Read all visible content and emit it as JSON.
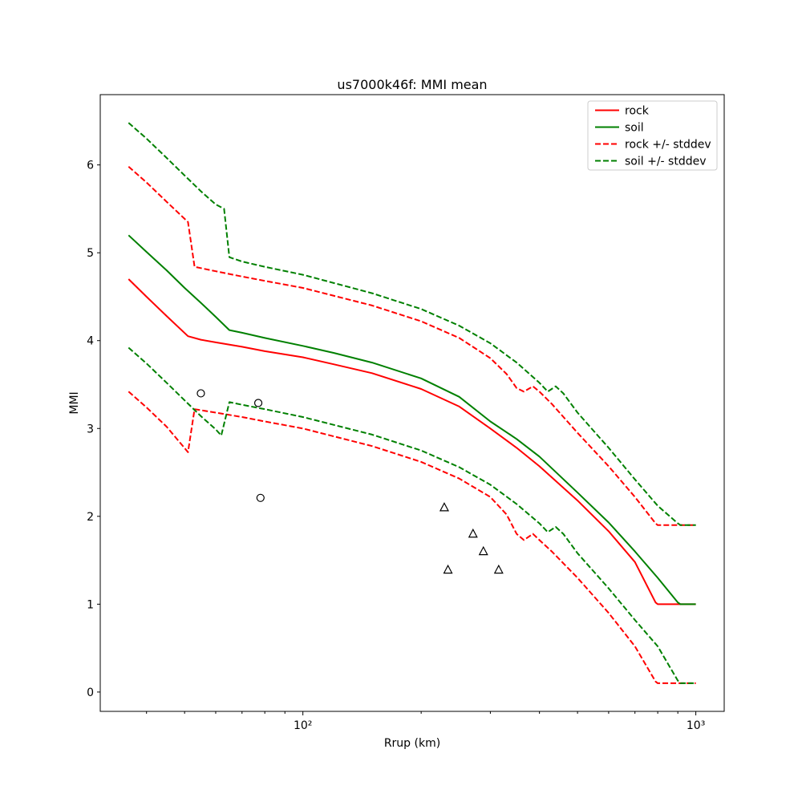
{
  "chart_data": {
    "type": "line",
    "title": "us7000k46f: MMI mean",
    "xlabel": "Rrup (km)",
    "ylabel": "MMI",
    "x_scale": "log",
    "xlim": [
      30.5,
      1181
    ],
    "ylim": [
      -0.22,
      6.8
    ],
    "yticks": [
      0,
      1,
      2,
      3,
      4,
      5,
      6
    ],
    "xticks_major": [
      {
        "value": 100,
        "label": "10²"
      },
      {
        "value": 1000,
        "label": "10³"
      }
    ],
    "xticks_minor": [
      40,
      50,
      60,
      70,
      80,
      90,
      200,
      300,
      400,
      500,
      600,
      700,
      800,
      900
    ],
    "colors": {
      "rock": "#ff0000",
      "soil": "#008000"
    },
    "series": [
      {
        "name": "rock",
        "color": "#ff0000",
        "style": "solid",
        "points": [
          [
            36,
            4.7
          ],
          [
            40,
            4.5
          ],
          [
            45,
            4.28
          ],
          [
            51,
            4.05
          ],
          [
            55,
            4.01
          ],
          [
            60,
            3.98
          ],
          [
            70,
            3.93
          ],
          [
            80,
            3.88
          ],
          [
            100,
            3.81
          ],
          [
            120,
            3.73
          ],
          [
            150,
            3.63
          ],
          [
            200,
            3.45
          ],
          [
            250,
            3.25
          ],
          [
            300,
            3.0
          ],
          [
            350,
            2.78
          ],
          [
            400,
            2.57
          ],
          [
            500,
            2.18
          ],
          [
            600,
            1.83
          ],
          [
            700,
            1.48
          ],
          [
            790,
            1.02
          ],
          [
            800,
            1.0
          ],
          [
            1000,
            1.0
          ]
        ]
      },
      {
        "name": "soil",
        "color": "#008000",
        "style": "solid",
        "points": [
          [
            36,
            5.2
          ],
          [
            40,
            5.01
          ],
          [
            45,
            4.8
          ],
          [
            50,
            4.6
          ],
          [
            55,
            4.43
          ],
          [
            60,
            4.27
          ],
          [
            65,
            4.12
          ],
          [
            70,
            4.09
          ],
          [
            80,
            4.03
          ],
          [
            100,
            3.94
          ],
          [
            120,
            3.86
          ],
          [
            150,
            3.75
          ],
          [
            200,
            3.57
          ],
          [
            250,
            3.36
          ],
          [
            300,
            3.08
          ],
          [
            350,
            2.88
          ],
          [
            400,
            2.68
          ],
          [
            500,
            2.27
          ],
          [
            600,
            1.93
          ],
          [
            700,
            1.6
          ],
          [
            800,
            1.3
          ],
          [
            900,
            1.02
          ],
          [
            914,
            1.0
          ],
          [
            1000,
            1.0
          ]
        ]
      },
      {
        "name": "rock-plus-stddev",
        "color": "#ff0000",
        "style": "dashed",
        "points": [
          [
            36,
            5.98
          ],
          [
            40,
            5.8
          ],
          [
            45,
            5.58
          ],
          [
            51,
            5.35
          ],
          [
            53,
            4.84
          ],
          [
            60,
            4.79
          ],
          [
            70,
            4.73
          ],
          [
            80,
            4.68
          ],
          [
            100,
            4.6
          ],
          [
            150,
            4.4
          ],
          [
            200,
            4.22
          ],
          [
            250,
            4.03
          ],
          [
            300,
            3.8
          ],
          [
            330,
            3.62
          ],
          [
            350,
            3.46
          ],
          [
            365,
            3.42
          ],
          [
            385,
            3.48
          ],
          [
            400,
            3.42
          ],
          [
            430,
            3.28
          ],
          [
            500,
            2.95
          ],
          [
            600,
            2.57
          ],
          [
            700,
            2.22
          ],
          [
            790,
            1.92
          ],
          [
            800,
            1.9
          ],
          [
            1000,
            1.9
          ]
        ]
      },
      {
        "name": "rock-minus-stddev",
        "color": "#ff0000",
        "style": "dashed",
        "points": [
          [
            36,
            3.42
          ],
          [
            40,
            3.24
          ],
          [
            45,
            3.02
          ],
          [
            51,
            2.73
          ],
          [
            53,
            3.22
          ],
          [
            60,
            3.18
          ],
          [
            70,
            3.13
          ],
          [
            80,
            3.08
          ],
          [
            100,
            3.0
          ],
          [
            150,
            2.8
          ],
          [
            200,
            2.62
          ],
          [
            250,
            2.43
          ],
          [
            300,
            2.22
          ],
          [
            330,
            2.02
          ],
          [
            350,
            1.8
          ],
          [
            365,
            1.73
          ],
          [
            385,
            1.8
          ],
          [
            400,
            1.73
          ],
          [
            430,
            1.6
          ],
          [
            500,
            1.3
          ],
          [
            600,
            0.9
          ],
          [
            700,
            0.52
          ],
          [
            790,
            0.12
          ],
          [
            800,
            0.1
          ],
          [
            1000,
            0.1
          ]
        ]
      },
      {
        "name": "soil-plus-stddev",
        "color": "#008000",
        "style": "dashed",
        "points": [
          [
            36,
            6.48
          ],
          [
            40,
            6.3
          ],
          [
            45,
            6.08
          ],
          [
            50,
            5.88
          ],
          [
            55,
            5.7
          ],
          [
            60,
            5.55
          ],
          [
            63,
            5.5
          ],
          [
            65,
            4.95
          ],
          [
            70,
            4.9
          ],
          [
            80,
            4.84
          ],
          [
            100,
            4.75
          ],
          [
            150,
            4.54
          ],
          [
            200,
            4.36
          ],
          [
            250,
            4.17
          ],
          [
            300,
            3.97
          ],
          [
            350,
            3.75
          ],
          [
            400,
            3.52
          ],
          [
            420,
            3.42
          ],
          [
            440,
            3.48
          ],
          [
            460,
            3.4
          ],
          [
            500,
            3.18
          ],
          [
            600,
            2.78
          ],
          [
            700,
            2.42
          ],
          [
            800,
            2.12
          ],
          [
            900,
            1.92
          ],
          [
            914,
            1.9
          ],
          [
            1000,
            1.9
          ]
        ]
      },
      {
        "name": "soil-minus-stddev",
        "color": "#008000",
        "style": "dashed",
        "points": [
          [
            36,
            3.92
          ],
          [
            40,
            3.74
          ],
          [
            45,
            3.52
          ],
          [
            50,
            3.32
          ],
          [
            55,
            3.14
          ],
          [
            60,
            2.99
          ],
          [
            62,
            2.92
          ],
          [
            65,
            3.3
          ],
          [
            70,
            3.27
          ],
          [
            80,
            3.22
          ],
          [
            100,
            3.13
          ],
          [
            150,
            2.93
          ],
          [
            200,
            2.75
          ],
          [
            250,
            2.56
          ],
          [
            300,
            2.36
          ],
          [
            350,
            2.14
          ],
          [
            400,
            1.92
          ],
          [
            420,
            1.82
          ],
          [
            440,
            1.88
          ],
          [
            460,
            1.8
          ],
          [
            500,
            1.58
          ],
          [
            600,
            1.18
          ],
          [
            700,
            0.82
          ],
          [
            800,
            0.52
          ],
          [
            900,
            0.13
          ],
          [
            914,
            0.1
          ],
          [
            1000,
            0.1
          ]
        ]
      }
    ],
    "scatter": [
      {
        "marker": "circle",
        "points": [
          [
            55,
            3.4
          ],
          [
            77,
            3.29
          ],
          [
            78,
            2.21
          ]
        ]
      },
      {
        "marker": "triangle-up",
        "points": [
          [
            229,
            2.1
          ],
          [
            271,
            1.8
          ],
          [
            288,
            1.6
          ],
          [
            234,
            1.39
          ],
          [
            315,
            1.39
          ]
        ]
      }
    ],
    "legend": {
      "position": "upper right",
      "entries": [
        {
          "label": "rock",
          "color": "#ff0000",
          "style": "solid"
        },
        {
          "label": "soil",
          "color": "#008000",
          "style": "solid"
        },
        {
          "label": "rock +/- stddev",
          "color": "#ff0000",
          "style": "dashed"
        },
        {
          "label": "soil +/- stddev",
          "color": "#008000",
          "style": "dashed"
        }
      ]
    }
  }
}
